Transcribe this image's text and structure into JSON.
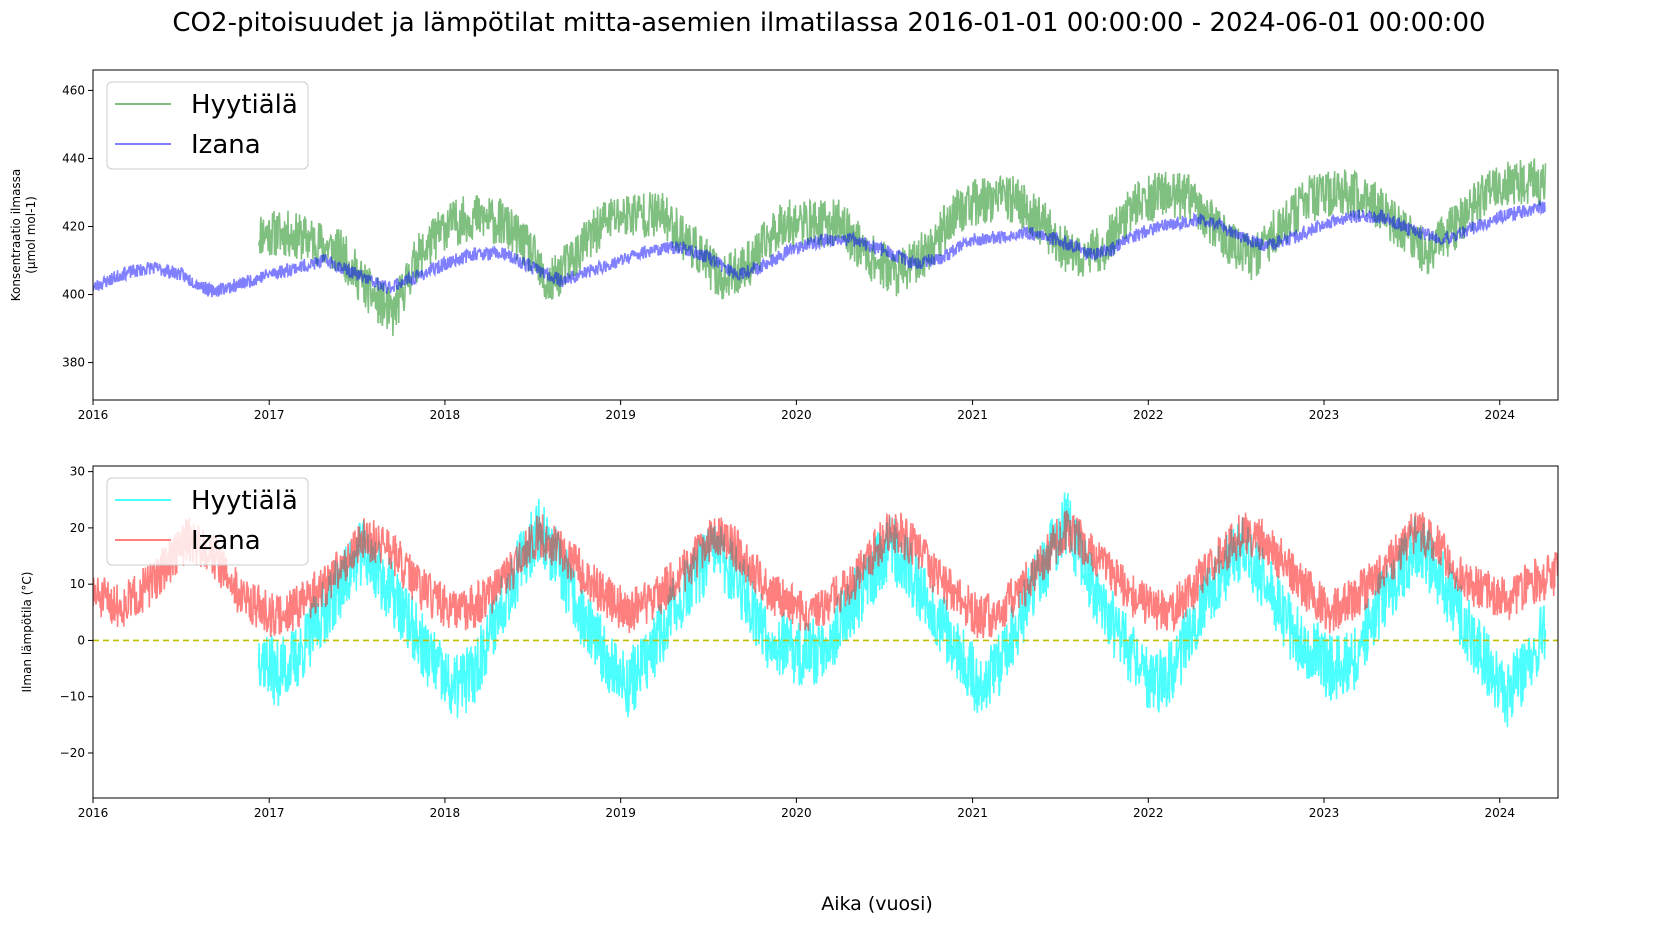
{
  "figure": {
    "title": "CO2-pitoisuudet ja lämpötilat mitta-asemien ilmatilassa 2016-01-01 00:00:00 - 2024-06-01 00:00:00",
    "xlabel": "Aika (vuosi)"
  },
  "chart_data": [
    {
      "type": "line",
      "title": "",
      "xlabel": "",
      "ylabel": "Konsentraatio ilmassa\n(µmol mol-1)",
      "xlim": [
        "2016-01-01",
        "2024-05-01"
      ],
      "ylim": [
        369,
        466
      ],
      "x_ticks": [
        "2016",
        "2017",
        "2018",
        "2019",
        "2020",
        "2021",
        "2022",
        "2023",
        "2024"
      ],
      "y_ticks": [
        380,
        400,
        420,
        440,
        460
      ],
      "grid": false,
      "legend": "top-left",
      "series": [
        {
          "name": "Hyytiälä",
          "color": "#008000",
          "opacity": 0.5,
          "x_dates": [
            "2016-12-10",
            "2017-02-01",
            "2017-04-01",
            "2017-06-01",
            "2017-08-01",
            "2017-09-15",
            "2017-11-01",
            "2018-01-01",
            "2018-03-01",
            "2018-05-01",
            "2018-07-01",
            "2018-08-01",
            "2018-10-01",
            "2018-12-01",
            "2019-02-01",
            "2019-04-01",
            "2019-06-01",
            "2019-08-01",
            "2019-10-01",
            "2019-12-01",
            "2020-02-01",
            "2020-04-01",
            "2020-06-01",
            "2020-08-01",
            "2020-10-01",
            "2020-12-01",
            "2021-02-01",
            "2021-04-01",
            "2021-06-01",
            "2021-08-01",
            "2021-10-01",
            "2021-12-01",
            "2022-02-01",
            "2022-04-01",
            "2022-06-01",
            "2022-08-01",
            "2022-10-01",
            "2022-12-01",
            "2023-02-01",
            "2023-04-01",
            "2023-06-01",
            "2023-08-01",
            "2023-10-01",
            "2023-12-01",
            "2024-02-01",
            "2024-04-05"
          ],
          "values": [
            418,
            418,
            416,
            412,
            400,
            394,
            410,
            420,
            423,
            421,
            412,
            402,
            412,
            422,
            424,
            423,
            414,
            404,
            410,
            421,
            421,
            421,
            411,
            406,
            413,
            425,
            428,
            428,
            420,
            410,
            414,
            426,
            430,
            428,
            418,
            410,
            420,
            428,
            430,
            429,
            420,
            412,
            420,
            430,
            433,
            433
          ]
        },
        {
          "name": "Izana",
          "color": "#0000ff",
          "opacity": 0.5,
          "x_dates": [
            "2016-01-01",
            "2016-03-01",
            "2016-05-01",
            "2016-07-01",
            "2016-09-01",
            "2016-11-01",
            "2017-01-01",
            "2017-03-01",
            "2017-05-01",
            "2017-07-01",
            "2017-09-01",
            "2017-11-01",
            "2018-01-01",
            "2018-03-01",
            "2018-05-01",
            "2018-07-01",
            "2018-09-01",
            "2018-11-01",
            "2019-01-01",
            "2019-03-01",
            "2019-05-01",
            "2019-07-01",
            "2019-09-01",
            "2019-11-01",
            "2020-01-01",
            "2020-03-01",
            "2020-05-01",
            "2020-07-01",
            "2020-09-01",
            "2020-11-01",
            "2021-01-01",
            "2021-03-01",
            "2021-05-01",
            "2021-07-01",
            "2021-09-01",
            "2021-10-15",
            "2021-11-01",
            "2022-01-01",
            "2022-03-01",
            "2022-05-01",
            "2022-07-01",
            "2022-09-01",
            "2022-11-01",
            "2023-01-01",
            "2023-03-01",
            "2023-05-01",
            "2023-07-01",
            "2023-08-20",
            "2023-09-01",
            "2023-11-01",
            "2024-01-01",
            "2024-04-05"
          ],
          "values": [
            402,
            406,
            408,
            406,
            401,
            403,
            406,
            408,
            410,
            406,
            402,
            405,
            409,
            412,
            412,
            408,
            404,
            407,
            410,
            413,
            414,
            411,
            406,
            409,
            414,
            416,
            416,
            413,
            409,
            411,
            416,
            417,
            418,
            416,
            412,
            413,
            415,
            419,
            421,
            422,
            418,
            414,
            417,
            421,
            423,
            423,
            419,
            417,
            416,
            419,
            423,
            426
          ]
        }
      ]
    },
    {
      "type": "line",
      "title": "",
      "xlabel": "",
      "ylabel": "Ilman lämpötila (°C)",
      "xlim": [
        "2016-01-01",
        "2024-05-01"
      ],
      "ylim": [
        -28,
        31
      ],
      "x_ticks": [
        "2016",
        "2017",
        "2018",
        "2019",
        "2020",
        "2021",
        "2022",
        "2023",
        "2024"
      ],
      "y_ticks": [
        -20,
        -10,
        0,
        10,
        20,
        30
      ],
      "grid": false,
      "legend": "top-left",
      "reference_line": {
        "y": 0,
        "color": "#bfbf00",
        "style": "dashed"
      },
      "series": [
        {
          "name": "Hyytiälä",
          "color": "#00ffff",
          "opacity": 0.7,
          "x_dates": [
            "2016-12-10",
            "2017-01-15",
            "2017-03-01",
            "2017-05-01",
            "2017-07-15",
            "2017-09-01",
            "2017-11-01",
            "2018-01-15",
            "2018-03-01",
            "2018-05-01",
            "2018-07-15",
            "2018-09-01",
            "2018-11-01",
            "2019-01-15",
            "2019-03-01",
            "2019-05-01",
            "2019-07-15",
            "2019-09-01",
            "2019-11-01",
            "2020-01-15",
            "2020-03-01",
            "2020-05-01",
            "2020-07-15",
            "2020-09-01",
            "2020-11-01",
            "2021-01-15",
            "2021-03-01",
            "2021-05-01",
            "2021-07-15",
            "2021-09-01",
            "2021-11-01",
            "2022-01-15",
            "2022-03-01",
            "2022-05-01",
            "2022-07-15",
            "2022-09-01",
            "2022-11-01",
            "2023-01-15",
            "2023-03-01",
            "2023-05-01",
            "2023-07-15",
            "2023-09-01",
            "2023-11-01",
            "2024-01-15",
            "2024-03-01",
            "2024-04-05"
          ],
          "values": [
            -2,
            -6,
            -3,
            6,
            16,
            10,
            1,
            -9,
            -6,
            7,
            20,
            12,
            1,
            -8,
            -3,
            7,
            16,
            11,
            1,
            -3,
            -1,
            7,
            17,
            11,
            3,
            -8,
            -4,
            8,
            21,
            11,
            1,
            -8,
            -4,
            8,
            17,
            10,
            1,
            -5,
            -4,
            7,
            17,
            11,
            1,
            -10,
            -4,
            2
          ]
        },
        {
          "name": "Izana",
          "color": "#ff0000",
          "opacity": 0.5,
          "x_dates": [
            "2016-01-01",
            "2016-03-01",
            "2016-05-01",
            "2016-07-15",
            "2016-09-01",
            "2016-11-01",
            "2017-01-15",
            "2017-03-01",
            "2017-05-01",
            "2017-07-15",
            "2017-09-01",
            "2017-11-01",
            "2018-01-15",
            "2018-03-01",
            "2018-05-01",
            "2018-07-15",
            "2018-09-01",
            "2018-11-01",
            "2019-01-15",
            "2019-03-01",
            "2019-05-01",
            "2019-07-15",
            "2019-09-01",
            "2019-11-01",
            "2020-01-15",
            "2020-03-01",
            "2020-05-01",
            "2020-07-15",
            "2020-09-01",
            "2020-11-01",
            "2021-01-15",
            "2021-03-01",
            "2021-05-01",
            "2021-07-15",
            "2021-09-01",
            "2021-11-01",
            "2022-01-15",
            "2022-03-01",
            "2022-05-01",
            "2022-07-15",
            "2022-09-01",
            "2022-11-01",
            "2023-01-15",
            "2023-03-01",
            "2023-05-01",
            "2023-07-15",
            "2023-09-01",
            "2023-11-01",
            "2024-01-15",
            "2024-03-01",
            "2024-05-01"
          ],
          "values": [
            8,
            6,
            10,
            18,
            16,
            8,
            4,
            6,
            10,
            18,
            17,
            10,
            5,
            6,
            10,
            19,
            16,
            10,
            5,
            7,
            11,
            19,
            16,
            9,
            5,
            6,
            11,
            20,
            17,
            10,
            4,
            5,
            11,
            20,
            16,
            10,
            5,
            6,
            12,
            19,
            18,
            11,
            5,
            7,
            12,
            20,
            16,
            10,
            7,
            10,
            12
          ]
        }
      ]
    }
  ]
}
